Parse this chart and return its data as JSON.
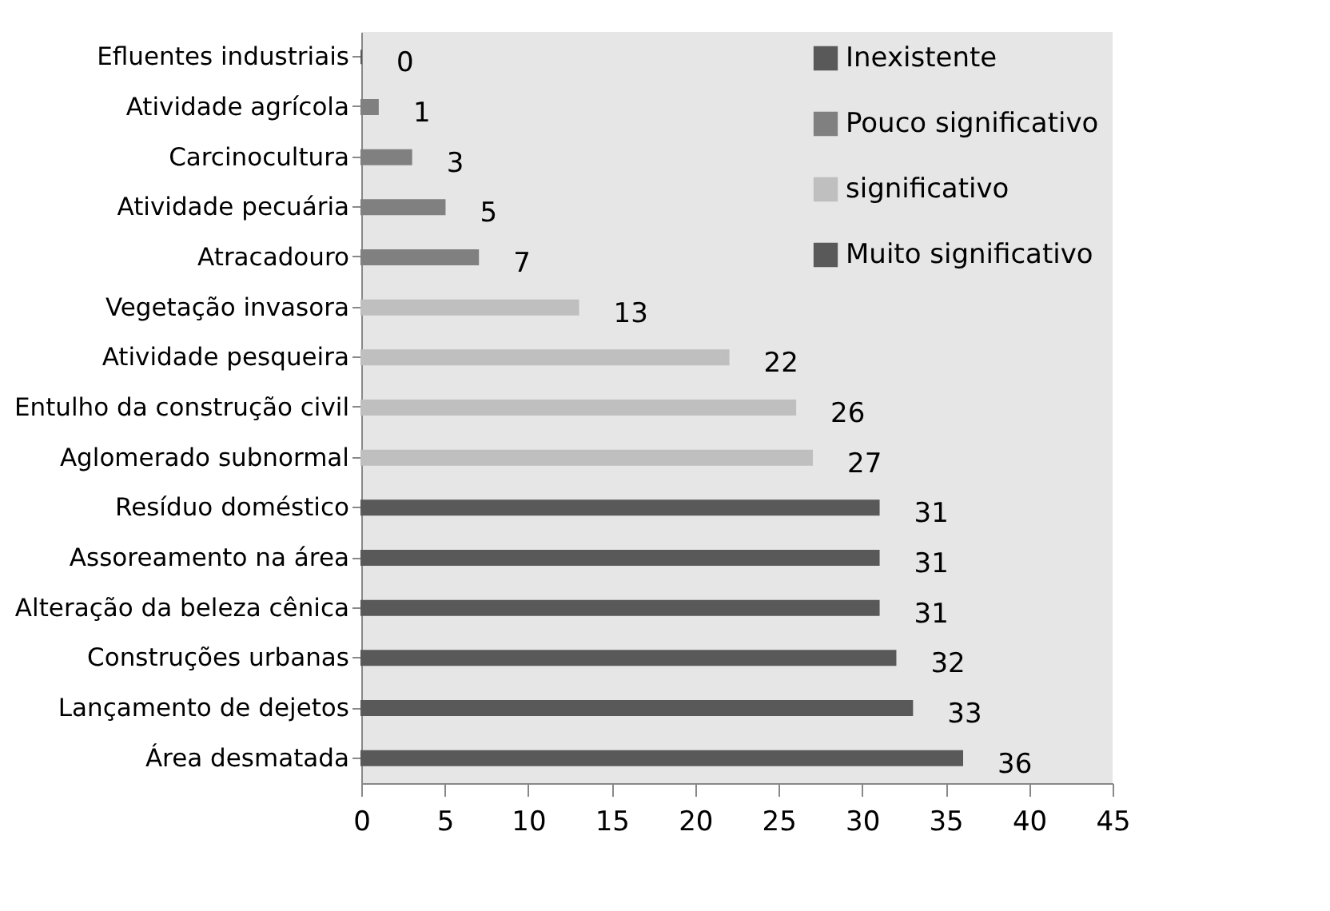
{
  "chart_data": {
    "type": "bar",
    "orientation": "horizontal",
    "categories": [
      "Efluentes industriais",
      "Atividade agrícola",
      "Carcinocultura",
      "Atividade pecuária",
      "Atracadouro",
      "Vegetação invasora",
      "Atividade pesqueira",
      "Entulho da construção civil",
      "Aglomerado subnormal",
      "Resíduo doméstico",
      "Assoreamento na área",
      "Alteração da beleza cênica",
      "Construções urbanas",
      "Lançamento de dejetos",
      "Área desmatada"
    ],
    "series": [
      {
        "name": "Inexistente",
        "color": "#595959",
        "values": [
          0,
          null,
          null,
          null,
          null,
          null,
          null,
          null,
          null,
          null,
          null,
          null,
          null,
          null,
          null
        ]
      },
      {
        "name": "Pouco significativo",
        "color": "#808080",
        "values": [
          null,
          1,
          3,
          5,
          7,
          null,
          null,
          null,
          null,
          null,
          null,
          null,
          null,
          null,
          null
        ]
      },
      {
        "name": "significativo",
        "color": "#bfbfbf",
        "values": [
          null,
          null,
          null,
          null,
          null,
          13,
          22,
          26,
          27,
          null,
          null,
          null,
          null,
          null,
          null
        ]
      },
      {
        "name": "Muito significativo",
        "color": "#595959",
        "values": [
          null,
          null,
          null,
          null,
          null,
          null,
          null,
          null,
          null,
          31,
          31,
          31,
          32,
          33,
          36
        ]
      }
    ],
    "xlim": [
      0,
      45
    ],
    "xticks": [
      0,
      5,
      10,
      15,
      20,
      25,
      30,
      35,
      40,
      45
    ],
    "data_labels": true,
    "grid": false,
    "legend": "top right"
  }
}
